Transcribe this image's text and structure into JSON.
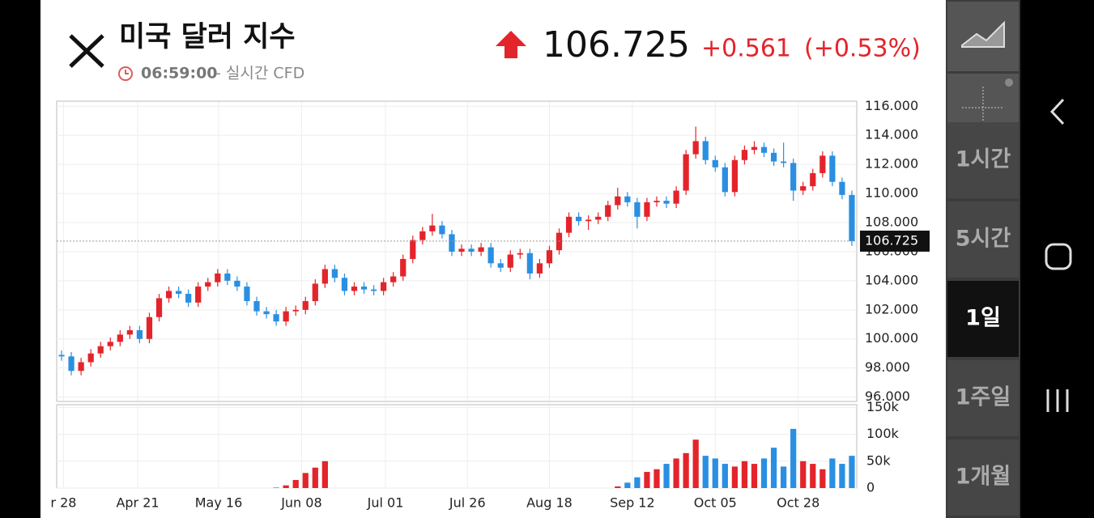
{
  "header": {
    "title": "미국 달러 지수",
    "time": "06:59:00",
    "source": "- 실시간 CFD",
    "price": "106.725",
    "change": "+0.561",
    "change_pct": "(+0.53%)"
  },
  "sidebar": {
    "buttons": [
      "1시간",
      "5시간",
      "1일",
      "1주일",
      "1개월"
    ],
    "selected": 2
  },
  "chart_data": [
    {
      "type": "candlestick",
      "up_color": "#e3242b",
      "down_color": "#2a8fe2",
      "grid": true,
      "current_price": 106.725,
      "open": [
        98.9,
        98.8,
        97.8,
        98.4,
        99.0,
        99.5,
        99.8,
        100.3,
        100.6,
        100.0,
        101.5,
        102.8,
        103.3,
        103.1,
        102.5,
        103.6,
        103.9,
        104.5,
        104.0,
        103.6,
        102.6,
        101.9,
        101.7,
        101.2,
        101.9,
        102.0,
        102.6,
        103.8,
        104.8,
        104.2,
        103.3,
        103.6,
        103.4,
        103.3,
        103.9,
        104.3,
        105.5,
        106.8,
        107.4,
        107.8,
        107.2,
        106.0,
        106.2,
        106.0,
        106.3,
        105.2,
        104.9,
        105.8,
        105.9,
        104.5,
        105.2,
        106.1,
        107.3,
        108.4,
        108.1,
        108.2,
        108.4,
        109.2,
        109.8,
        109.4,
        108.4,
        109.4,
        109.5,
        109.3,
        110.2,
        112.7,
        113.6,
        112.3,
        111.8,
        110.1,
        112.3,
        113.0,
        113.2,
        112.8,
        112.2,
        112.1,
        110.2,
        110.5,
        111.4,
        112.6,
        110.8,
        109.9
      ],
      "high": [
        99.2,
        99.1,
        98.7,
        99.3,
        99.8,
        100.1,
        100.6,
        100.9,
        100.9,
        101.8,
        103.1,
        103.6,
        103.6,
        103.4,
        103.9,
        104.2,
        104.8,
        104.8,
        104.3,
        103.9,
        102.9,
        102.2,
        102.0,
        102.2,
        102.3,
        102.9,
        104.1,
        105.1,
        105.1,
        104.5,
        103.9,
        103.9,
        103.7,
        104.2,
        104.6,
        105.8,
        107.1,
        107.7,
        108.6,
        108.1,
        107.5,
        106.5,
        106.5,
        106.6,
        106.6,
        105.5,
        106.1,
        106.2,
        106.2,
        105.5,
        106.4,
        107.6,
        108.7,
        108.7,
        108.5,
        108.7,
        109.5,
        110.4,
        110.1,
        109.7,
        109.7,
        109.8,
        109.8,
        110.5,
        113.0,
        114.6,
        113.9,
        112.6,
        112.1,
        112.6,
        113.3,
        113.6,
        113.5,
        113.1,
        113.5,
        112.4,
        110.8,
        111.7,
        112.9,
        112.9,
        111.1,
        110.2
      ],
      "low": [
        98.5,
        97.5,
        97.5,
        98.1,
        98.7,
        99.2,
        99.5,
        100.0,
        99.7,
        99.7,
        101.2,
        102.5,
        102.8,
        102.2,
        102.2,
        103.3,
        103.6,
        103.7,
        103.3,
        102.3,
        101.6,
        101.4,
        100.9,
        100.9,
        101.6,
        101.7,
        102.3,
        103.5,
        103.9,
        103.0,
        103.0,
        103.1,
        103.0,
        103.0,
        103.6,
        104.0,
        105.2,
        106.5,
        107.1,
        106.9,
        105.7,
        105.7,
        105.7,
        105.7,
        104.9,
        104.6,
        104.6,
        105.5,
        104.1,
        104.2,
        104.9,
        105.8,
        107.0,
        107.8,
        107.5,
        107.9,
        108.1,
        108.9,
        109.1,
        107.6,
        108.1,
        109.1,
        109.0,
        109.0,
        109.9,
        112.4,
        112.0,
        111.5,
        109.8,
        109.8,
        112.0,
        112.7,
        112.5,
        111.9,
        111.8,
        109.5,
        109.9,
        110.2,
        111.1,
        110.5,
        109.6,
        106.4
      ],
      "close": [
        98.8,
        97.8,
        98.4,
        99.0,
        99.5,
        99.8,
        100.3,
        100.6,
        100.0,
        101.5,
        102.8,
        103.3,
        103.1,
        102.5,
        103.6,
        103.9,
        104.5,
        104.0,
        103.6,
        102.6,
        101.9,
        101.7,
        101.2,
        101.9,
        102.0,
        102.6,
        103.8,
        104.8,
        104.2,
        103.3,
        103.6,
        103.4,
        103.3,
        103.9,
        104.3,
        105.5,
        106.8,
        107.4,
        107.8,
        107.2,
        106.0,
        106.2,
        106.0,
        106.3,
        105.2,
        104.9,
        105.8,
        105.9,
        104.5,
        105.2,
        106.1,
        107.3,
        108.4,
        108.1,
        108.2,
        108.4,
        109.2,
        109.8,
        109.4,
        108.4,
        109.4,
        109.5,
        109.3,
        110.2,
        112.7,
        113.6,
        112.3,
        111.8,
        110.1,
        112.3,
        113.0,
        113.2,
        112.8,
        112.2,
        112.1,
        110.2,
        110.5,
        111.4,
        112.6,
        110.8,
        109.9,
        106.725
      ],
      "ylim": [
        95.7,
        116.35
      ],
      "yticks": [
        {
          "value": 96,
          "label": "96.000"
        },
        {
          "value": 98,
          "label": "98.000"
        },
        {
          "value": 100,
          "label": "100.000"
        },
        {
          "value": 102,
          "label": "102.000"
        },
        {
          "value": 104,
          "label": "104.000"
        },
        {
          "value": 106,
          "label": "106.000"
        },
        {
          "value": 108,
          "label": "108.000"
        },
        {
          "value": 110,
          "label": "110.000"
        },
        {
          "value": 112,
          "label": "112.000"
        },
        {
          "value": 114,
          "label": "114.000"
        },
        {
          "value": 116,
          "label": "116.000"
        }
      ],
      "xlim": [
        0,
        82
      ],
      "xticks": [
        {
          "value": 0.7,
          "label": "r 28"
        },
        {
          "value": 8.3,
          "label": "Apr 21"
        },
        {
          "value": 16.6,
          "label": "May 16"
        },
        {
          "value": 25.1,
          "label": "Jun 08"
        },
        {
          "value": 33.7,
          "label": "Jul 01"
        },
        {
          "value": 42.1,
          "label": "Jul 26"
        },
        {
          "value": 50.5,
          "label": "Aug 18"
        },
        {
          "value": 59,
          "label": "Sep 12"
        },
        {
          "value": 67.5,
          "label": "Oct 05"
        },
        {
          "value": 76,
          "label": "Oct 28"
        }
      ]
    },
    {
      "type": "bar",
      "values": [
        0,
        0,
        0,
        0,
        0,
        0,
        0,
        0,
        0,
        0,
        0,
        0,
        0,
        0,
        0,
        0,
        0,
        0,
        0,
        0,
        0,
        0,
        1000,
        5000,
        15000,
        28000,
        38000,
        50000,
        0,
        0,
        0,
        0,
        0,
        0,
        0,
        0,
        0,
        0,
        0,
        0,
        0,
        0,
        0,
        0,
        0,
        0,
        0,
        0,
        0,
        0,
        0,
        0,
        0,
        0,
        0,
        0,
        0,
        3000,
        10000,
        20000,
        30000,
        35000,
        45000,
        55000,
        65000,
        90000,
        60000,
        55000,
        45000,
        40000,
        50000,
        45000,
        55000,
        75000,
        40000,
        110000,
        50000,
        45000,
        35000,
        55000,
        45000,
        60000
      ],
      "ylim": [
        0,
        155000
      ],
      "yticks": [
        0,
        {
          "value": 50000,
          "label": "50k"
        },
        {
          "value": 100000,
          "label": "100k"
        },
        {
          "value": 150000,
          "label": "150k"
        }
      ]
    }
  ]
}
